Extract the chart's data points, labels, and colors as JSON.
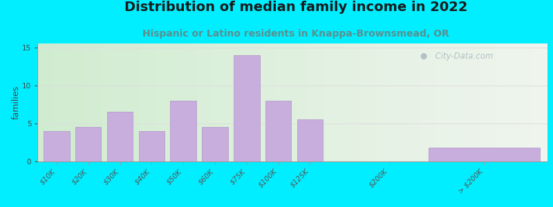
{
  "title": "Distribution of median family income in 2022",
  "subtitle": "Hispanic or Latino residents in Knappa-Brownsmead, OR",
  "ylabel": "families",
  "categories": [
    "$10K",
    "$20K",
    "$30K",
    "$40K",
    "$50K",
    "$60K",
    "$75K",
    "$100K",
    "$125K",
    "$200K",
    "> $200K"
  ],
  "values": [
    4,
    4.5,
    6.5,
    4,
    8,
    4.5,
    14,
    8,
    5.5,
    0,
    1.8
  ],
  "bar_color": "#c8aedd",
  "bar_edge_color": "#b090cc",
  "background_outer": "#00eeff",
  "title_fontsize": 14,
  "subtitle_fontsize": 10,
  "subtitle_color": "#5a9090",
  "ylabel_fontsize": 9,
  "tick_fontsize": 7.5,
  "ylim": [
    0,
    15.5
  ],
  "yticks": [
    0,
    5,
    10,
    15
  ],
  "grid_color": "#dddddd",
  "watermark_text": "  City-Data.com",
  "watermark_color": "#aab8c0",
  "bg_left_color": "#d0ecd0",
  "bg_right_color": "#e8f0e0"
}
